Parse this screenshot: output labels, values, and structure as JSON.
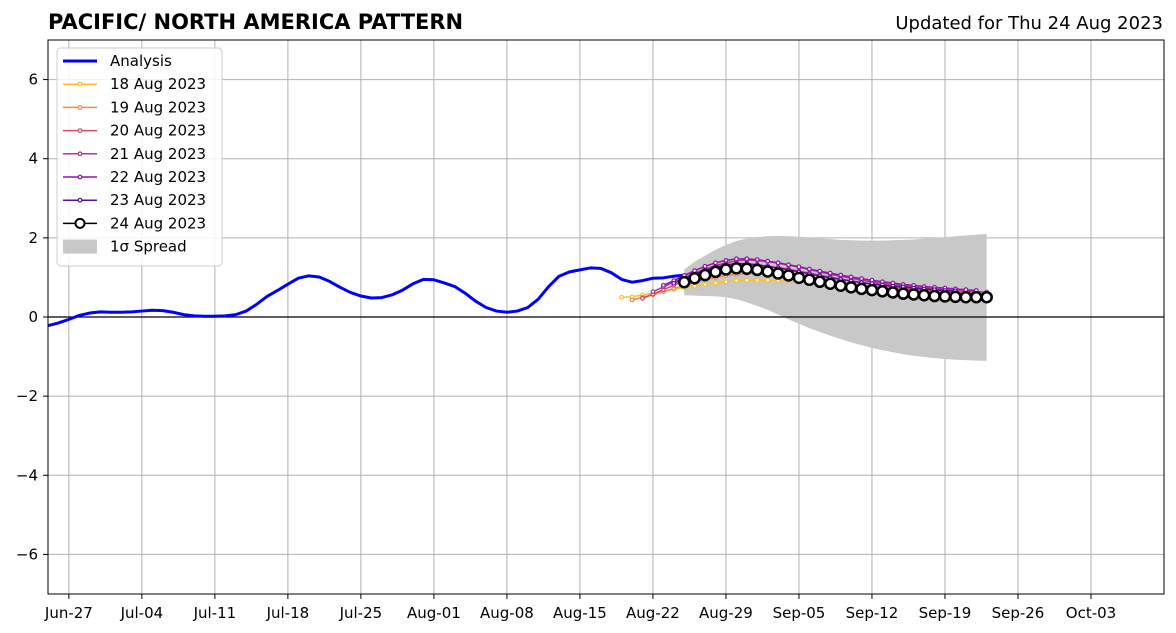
{
  "chart_data": {
    "type": "line",
    "title": "PACIFIC/ NORTH AMERICA PATTERN",
    "subtitle": "Updated for Thu 24 Aug 2023",
    "xlabel": "",
    "ylabel": "",
    "xlim": [
      "2023-06-25",
      "2023-10-10"
    ],
    "ylim": [
      -7,
      7
    ],
    "x_ticks": [
      "Jun-27",
      "Jul-04",
      "Jul-11",
      "Jul-18",
      "Jul-25",
      "Aug-01",
      "Aug-08",
      "Aug-15",
      "Aug-22",
      "Aug-29",
      "Sep-05",
      "Sep-12",
      "Sep-19",
      "Sep-26",
      "Oct-03"
    ],
    "x_tick_dates": [
      "2023-06-27",
      "2023-07-04",
      "2023-07-11",
      "2023-07-18",
      "2023-07-25",
      "2023-08-01",
      "2023-08-08",
      "2023-08-15",
      "2023-08-22",
      "2023-08-29",
      "2023-09-05",
      "2023-09-12",
      "2023-09-19",
      "2023-09-26",
      "2023-10-03"
    ],
    "y_ticks": [
      -6,
      -4,
      -2,
      0,
      2,
      4,
      6
    ],
    "y_tick_labels": [
      "−6",
      "−4",
      "−2",
      "0",
      "2",
      "4",
      "6"
    ],
    "grid": true,
    "legend_position": "top-left",
    "series": [
      {
        "name": "Analysis",
        "color": "#0000ff",
        "style": "line",
        "start": "2023-06-25",
        "values": [
          -0.22,
          -0.15,
          -0.06,
          0.04,
          0.1,
          0.13,
          0.12,
          0.12,
          0.13,
          0.15,
          0.17,
          0.16,
          0.12,
          0.06,
          0.03,
          0.02,
          0.02,
          0.03,
          0.06,
          0.15,
          0.32,
          0.52,
          0.67,
          0.83,
          0.98,
          1.04,
          1.01,
          0.9,
          0.75,
          0.62,
          0.53,
          0.48,
          0.49,
          0.56,
          0.68,
          0.84,
          0.95,
          0.94,
          0.86,
          0.77,
          0.6,
          0.4,
          0.24,
          0.15,
          0.12,
          0.15,
          0.24,
          0.45,
          0.77,
          1.03,
          1.14,
          1.19,
          1.24,
          1.23,
          1.12,
          0.95,
          0.88,
          0.92,
          0.98,
          0.99,
          1.03,
          1.06
        ]
      },
      {
        "name": "18 Aug 2023",
        "color": "#f9c12c",
        "style": "line-dots",
        "start": "2023-08-19",
        "values": [
          0.5,
          0.51,
          0.56,
          0.6,
          0.65,
          0.7,
          0.74,
          0.78,
          0.82,
          0.86,
          0.89,
          0.92,
          0.93,
          0.93,
          0.93,
          0.92,
          0.91,
          0.89,
          0.87,
          0.85,
          0.82,
          0.8,
          0.77,
          0.75,
          0.73,
          0.71,
          0.7,
          0.68,
          0.67,
          0.65,
          0.63,
          0.62,
          0.61
        ]
      },
      {
        "name": "19 Aug 2023",
        "color": "#ef8a47",
        "style": "line-dots",
        "start": "2023-08-20",
        "values": [
          0.43,
          0.5,
          0.56,
          0.64,
          0.72,
          0.8,
          0.87,
          0.94,
          1.0,
          1.05,
          1.08,
          1.1,
          1.1,
          1.09,
          1.07,
          1.04,
          1.01,
          0.97,
          0.93,
          0.89,
          0.85,
          0.82,
          0.79,
          0.76,
          0.73,
          0.71,
          0.69,
          0.67,
          0.65,
          0.63,
          0.62,
          0.61,
          0.6
        ]
      },
      {
        "name": "20 Aug 2023",
        "color": "#d9476b",
        "style": "line-dots",
        "start": "2023-08-21",
        "values": [
          0.47,
          0.58,
          0.69,
          0.8,
          0.91,
          1.01,
          1.1,
          1.18,
          1.24,
          1.28,
          1.3,
          1.3,
          1.28,
          1.25,
          1.21,
          1.16,
          1.11,
          1.06,
          1.01,
          0.96,
          0.91,
          0.87,
          0.83,
          0.79,
          0.76,
          0.73,
          0.7,
          0.68,
          0.66,
          0.64,
          0.62,
          0.61,
          0.6
        ]
      },
      {
        "name": "21 Aug 2023",
        "color": "#b5368b",
        "style": "line-dots",
        "start": "2023-08-22",
        "values": [
          0.64,
          0.76,
          0.88,
          1.0,
          1.11,
          1.21,
          1.3,
          1.37,
          1.42,
          1.44,
          1.43,
          1.4,
          1.36,
          1.31,
          1.26,
          1.2,
          1.14,
          1.08,
          1.03,
          0.98,
          0.93,
          0.89,
          0.85,
          0.82,
          0.79,
          0.76,
          0.73,
          0.71,
          0.69,
          0.67,
          0.65,
          0.64,
          0.63
        ]
      },
      {
        "name": "22 Aug 2023",
        "color": "#9112ad",
        "style": "line-dots",
        "start": "2023-08-23",
        "values": [
          0.8,
          0.92,
          1.05,
          1.17,
          1.28,
          1.37,
          1.43,
          1.47,
          1.47,
          1.45,
          1.41,
          1.37,
          1.32,
          1.27,
          1.21,
          1.16,
          1.11,
          1.06,
          1.01,
          0.97,
          0.93,
          0.89,
          0.86,
          0.82,
          0.8,
          0.77,
          0.75,
          0.73,
          0.71,
          0.69,
          0.67
        ]
      },
      {
        "name": "23 Aug 2023",
        "color": "#5a0fa0",
        "style": "line-dots",
        "start": "2023-08-24",
        "values": [
          0.85,
          0.97,
          1.08,
          1.18,
          1.26,
          1.32,
          1.35,
          1.35,
          1.32,
          1.28,
          1.24,
          1.19,
          1.14,
          1.09,
          1.04,
          0.99,
          0.95,
          0.91,
          0.87,
          0.84,
          0.81,
          0.78,
          0.76,
          0.73,
          0.71,
          0.69,
          0.67,
          0.66
        ]
      },
      {
        "name": "24 Aug 2023",
        "color": "#000000",
        "style": "line-circles",
        "start": "2023-08-25",
        "values": [
          0.88,
          0.98,
          1.06,
          1.14,
          1.2,
          1.23,
          1.22,
          1.19,
          1.15,
          1.1,
          1.05,
          0.99,
          0.94,
          0.89,
          0.84,
          0.79,
          0.75,
          0.71,
          0.68,
          0.65,
          0.62,
          0.59,
          0.57,
          0.55,
          0.53,
          0.52,
          0.51,
          0.5,
          0.5,
          0.5
        ]
      }
    ],
    "spread": {
      "name": "1σ Spread",
      "color": "#c8c8c8",
      "start": "2023-08-25",
      "upper": [
        1.2,
        1.4,
        1.55,
        1.7,
        1.82,
        1.92,
        1.98,
        2.02,
        2.04,
        2.05,
        2.04,
        2.03,
        2.01,
        1.99,
        1.97,
        1.95,
        1.94,
        1.93,
        1.93,
        1.93,
        1.94,
        1.95,
        1.96,
        1.98,
        2.0,
        2.02,
        2.04,
        2.06,
        2.08,
        2.1
      ],
      "lower": [
        0.55,
        0.54,
        0.53,
        0.52,
        0.5,
        0.45,
        0.37,
        0.28,
        0.18,
        0.06,
        -0.06,
        -0.17,
        -0.28,
        -0.38,
        -0.47,
        -0.56,
        -0.64,
        -0.71,
        -0.78,
        -0.84,
        -0.89,
        -0.94,
        -0.98,
        -1.01,
        -1.04,
        -1.06,
        -1.08,
        -1.09,
        -1.1,
        -1.11
      ]
    }
  }
}
